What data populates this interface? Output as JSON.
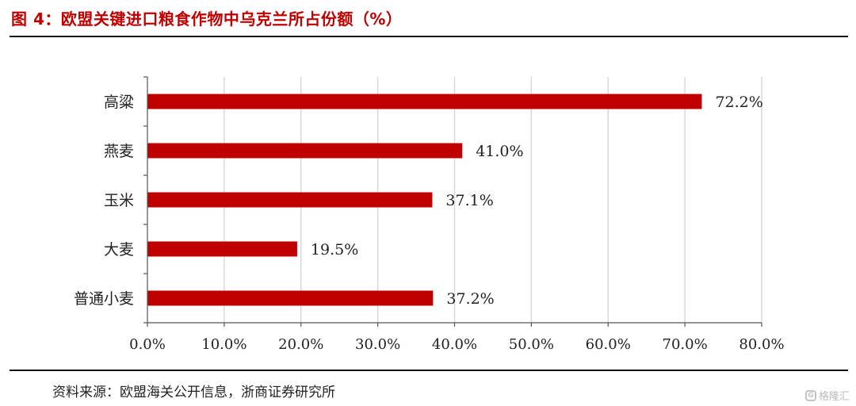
{
  "figure": {
    "title": "图 4：欧盟关键进口粮食作物中乌克兰所占份额（%）",
    "source": "资料来源：欧盟海关公开信息，浙商证券研究所",
    "watermark": "格隆汇"
  },
  "chart_data": {
    "type": "bar",
    "orientation": "horizontal",
    "categories": [
      "高粱",
      "燕麦",
      "玉米",
      "大麦",
      "普通小麦"
    ],
    "values": [
      72.2,
      41.0,
      37.1,
      19.5,
      37.2
    ],
    "value_labels": [
      "72.2%",
      "41.0%",
      "37.1%",
      "19.5%",
      "37.2%"
    ],
    "xlim": [
      0,
      80
    ],
    "xticks": [
      0,
      10,
      20,
      30,
      40,
      50,
      60,
      70,
      80
    ],
    "xtick_labels": [
      "0.0%",
      "10.0%",
      "20.0%",
      "30.0%",
      "40.0%",
      "50.0%",
      "60.0%",
      "70.0%",
      "80.0%"
    ],
    "title": "",
    "xlabel": "",
    "ylabel": "",
    "grid": "vertical",
    "legend": "none",
    "bar_color": "#c00000",
    "grid_color": "#d9d9d9"
  }
}
